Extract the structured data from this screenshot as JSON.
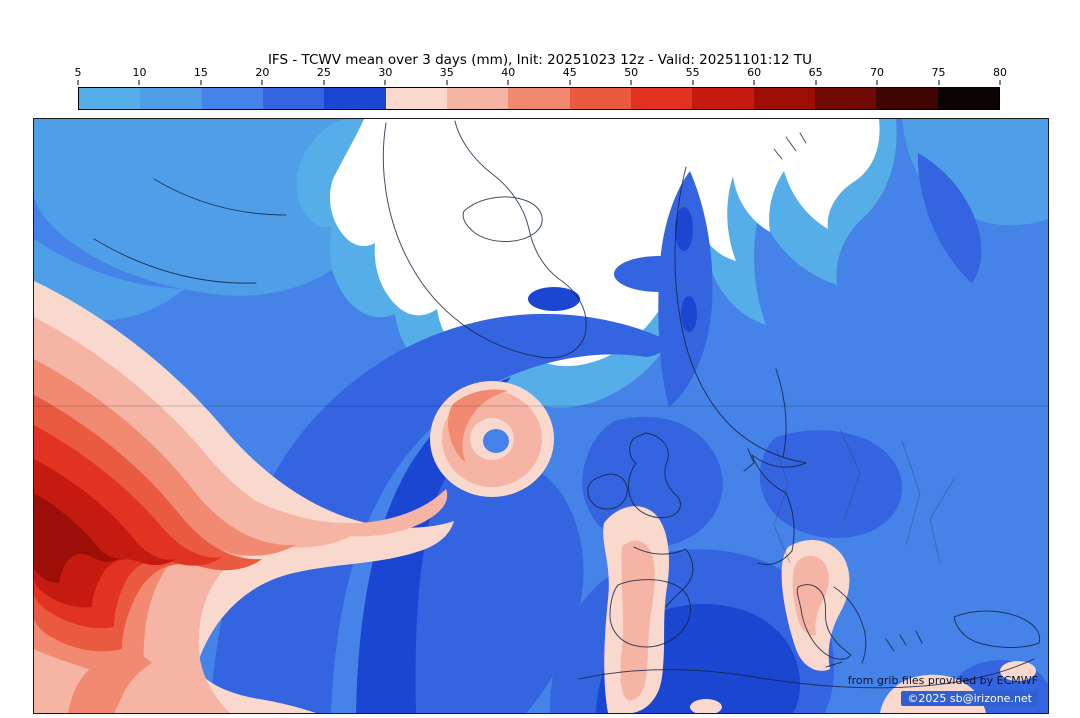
{
  "title": "IFS - TCWV mean over 3 days (mm), Init: 20251023 12z - Valid: 20251101:12 TU",
  "colorbar": {
    "ticks": [
      "5",
      "10",
      "15",
      "20",
      "25",
      "30",
      "35",
      "40",
      "45",
      "50",
      "55",
      "60",
      "65",
      "70",
      "75",
      "80"
    ],
    "colors": [
      "#55aee8",
      "#4e9ee8",
      "#4583e8",
      "#3564e0",
      "#1a46d2",
      "#f9d8ce",
      "#f6b4a4",
      "#f18a70",
      "#ea5a40",
      "#e23222",
      "#c41a0f",
      "#9c0e07",
      "#6f0a05",
      "#3f0503",
      "#0d0302"
    ]
  },
  "map": {
    "credit_line1": "from grib files provided by ECMWF",
    "credit_line2": "©2025 sb@irizone.net"
  },
  "chart_data": {
    "type": "heatmap",
    "title": "IFS - TCWV mean over 3 days (mm), Init: 20251023 12z - Valid: 20251101:12 TU",
    "units": "mm",
    "legend_ticks": [
      5,
      10,
      15,
      20,
      25,
      30,
      35,
      40,
      45,
      50,
      55,
      60,
      65,
      70,
      75,
      80
    ],
    "legend_colors": [
      "#55aee8",
      "#4e9ee8",
      "#4583e8",
      "#3564e0",
      "#1a46d2",
      "#f9d8ce",
      "#f6b4a4",
      "#f18a70",
      "#ea5a40",
      "#e23222",
      "#c41a0f",
      "#9c0e07",
      "#6f0a05",
      "#3f0503",
      "#0d0302"
    ],
    "legend_position": "top"
  }
}
